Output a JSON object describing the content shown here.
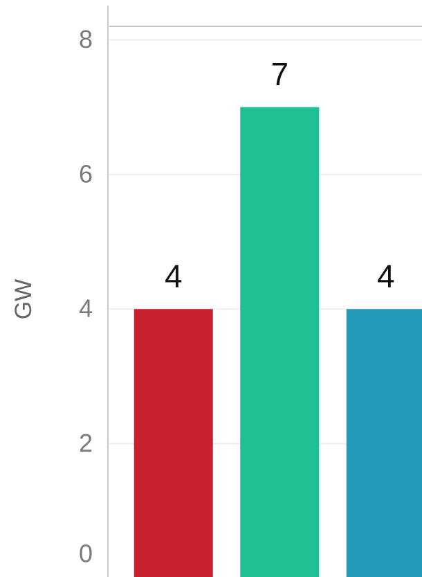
{
  "chart_data": {
    "type": "bar",
    "y_axis_label": "GW",
    "categories": [
      null,
      null,
      null
    ],
    "values": [
      4,
      7,
      4
    ],
    "colors": [
      "#c8202f",
      "#20c095",
      "#239ab9"
    ],
    "ylim": [
      0,
      8.2
    ],
    "yticks": [
      0,
      2,
      4,
      6,
      8
    ],
    "grid": true
  }
}
